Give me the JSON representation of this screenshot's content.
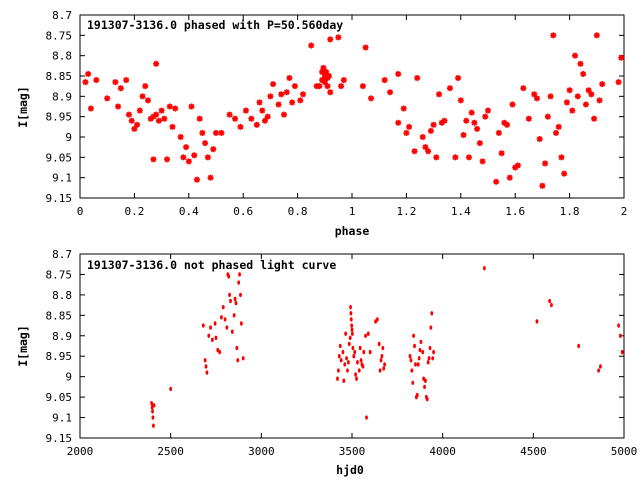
{
  "chart_data": [
    {
      "type": "scatter",
      "title": "191307-3136.0 phased with P=50.560day",
      "xlabel": "phase",
      "ylabel": "I[mag]",
      "xlim": [
        0,
        2
      ],
      "ylim": [
        8.7,
        9.15
      ],
      "y_inverted": true,
      "grid": false,
      "marker_color": "#ff0000",
      "x_ticks": [
        "0",
        "0.2",
        "0.4",
        "0.6",
        "0.8",
        "1",
        "1.2",
        "1.4",
        "1.6",
        "1.8",
        "2"
      ],
      "x_tick_values": [
        0,
        0.2,
        0.4,
        0.6,
        0.8,
        1.0,
        1.2,
        1.4,
        1.6,
        1.8,
        2.0
      ],
      "y_ticks": [
        "8.7",
        "8.75",
        "8.8",
        "8.85",
        "8.9",
        "8.95",
        "9",
        "9.05",
        "9.1",
        "9.15"
      ],
      "y_tick_values": [
        8.7,
        8.75,
        8.8,
        8.85,
        8.9,
        8.95,
        9.0,
        9.05,
        9.1,
        9.15
      ],
      "points": [
        [
          0.02,
          8.865
        ],
        [
          0.03,
          8.845
        ],
        [
          0.04,
          8.93
        ],
        [
          0.06,
          8.86
        ],
        [
          0.1,
          8.905
        ],
        [
          0.13,
          8.865
        ],
        [
          0.14,
          8.925
        ],
        [
          0.15,
          8.88
        ],
        [
          0.17,
          8.86
        ],
        [
          0.18,
          8.945
        ],
        [
          0.19,
          8.96
        ],
        [
          0.2,
          8.98
        ],
        [
          0.21,
          8.97
        ],
        [
          0.22,
          8.935
        ],
        [
          0.23,
          8.9
        ],
        [
          0.24,
          8.875
        ],
        [
          0.25,
          8.91
        ],
        [
          0.26,
          8.955
        ],
        [
          0.27,
          8.95
        ],
        [
          0.27,
          9.055
        ],
        [
          0.28,
          8.82
        ],
        [
          0.28,
          8.945
        ],
        [
          0.29,
          8.96
        ],
        [
          0.3,
          8.935
        ],
        [
          0.31,
          8.955
        ],
        [
          0.32,
          9.055
        ],
        [
          0.33,
          8.925
        ],
        [
          0.34,
          8.975
        ],
        [
          0.35,
          8.93
        ],
        [
          0.37,
          9.0
        ],
        [
          0.38,
          9.05
        ],
        [
          0.39,
          9.025
        ],
        [
          0.4,
          9.06
        ],
        [
          0.41,
          8.925
        ],
        [
          0.42,
          9.045
        ],
        [
          0.43,
          9.105
        ],
        [
          0.44,
          8.955
        ],
        [
          0.45,
          8.99
        ],
        [
          0.46,
          9.015
        ],
        [
          0.47,
          9.05
        ],
        [
          0.48,
          9.1
        ],
        [
          0.49,
          9.03
        ],
        [
          0.5,
          8.99
        ],
        [
          0.52,
          8.99
        ],
        [
          0.55,
          8.945
        ],
        [
          0.57,
          8.955
        ],
        [
          0.59,
          8.975
        ],
        [
          0.61,
          8.935
        ],
        [
          0.63,
          8.955
        ],
        [
          0.65,
          8.97
        ],
        [
          0.66,
          8.915
        ],
        [
          0.67,
          8.935
        ],
        [
          0.68,
          8.96
        ],
        [
          0.69,
          8.95
        ],
        [
          0.7,
          8.9
        ],
        [
          0.71,
          8.87
        ],
        [
          0.73,
          8.92
        ],
        [
          0.74,
          8.895
        ],
        [
          0.75,
          8.945
        ],
        [
          0.76,
          8.89
        ],
        [
          0.77,
          8.855
        ],
        [
          0.78,
          8.915
        ],
        [
          0.79,
          8.875
        ],
        [
          0.81,
          8.91
        ],
        [
          0.82,
          8.895
        ],
        [
          0.85,
          8.775
        ],
        [
          0.87,
          8.875
        ],
        [
          0.88,
          8.875
        ],
        [
          0.89,
          8.84
        ],
        [
          0.89,
          8.86
        ],
        [
          0.895,
          8.83
        ],
        [
          0.9,
          8.85
        ],
        [
          0.9,
          8.865
        ],
        [
          0.905,
          8.84
        ],
        [
          0.91,
          8.855
        ],
        [
          0.91,
          8.875
        ],
        [
          0.915,
          8.85
        ],
        [
          0.92,
          8.76
        ],
        [
          0.92,
          8.89
        ],
        [
          0.95,
          8.755
        ],
        [
          0.96,
          8.875
        ],
        [
          0.97,
          8.86
        ],
        [
          1.04,
          8.875
        ],
        [
          1.05,
          8.78
        ],
        [
          1.07,
          8.905
        ],
        [
          1.12,
          8.86
        ],
        [
          1.14,
          8.89
        ],
        [
          1.17,
          8.845
        ],
        [
          1.17,
          8.965
        ],
        [
          1.19,
          8.93
        ],
        [
          1.2,
          8.99
        ],
        [
          1.21,
          8.975
        ],
        [
          1.23,
          9.035
        ],
        [
          1.24,
          8.855
        ],
        [
          1.26,
          9.0
        ],
        [
          1.27,
          9.025
        ],
        [
          1.28,
          9.035
        ],
        [
          1.29,
          8.985
        ],
        [
          1.3,
          8.97
        ],
        [
          1.31,
          9.05
        ],
        [
          1.32,
          8.895
        ],
        [
          1.33,
          8.965
        ],
        [
          1.34,
          8.96
        ],
        [
          1.36,
          8.88
        ],
        [
          1.38,
          9.05
        ],
        [
          1.39,
          8.855
        ],
        [
          1.4,
          8.91
        ],
        [
          1.41,
          8.995
        ],
        [
          1.42,
          8.96
        ],
        [
          1.43,
          9.05
        ],
        [
          1.44,
          8.94
        ],
        [
          1.45,
          8.965
        ],
        [
          1.46,
          8.98
        ],
        [
          1.47,
          9.015
        ],
        [
          1.48,
          9.06
        ],
        [
          1.49,
          8.95
        ],
        [
          1.5,
          8.935
        ],
        [
          1.53,
          9.11
        ],
        [
          1.54,
          8.99
        ],
        [
          1.55,
          9.04
        ],
        [
          1.56,
          8.965
        ],
        [
          1.57,
          8.97
        ],
        [
          1.58,
          9.1
        ],
        [
          1.59,
          8.92
        ],
        [
          1.6,
          9.075
        ],
        [
          1.61,
          9.07
        ],
        [
          1.63,
          8.88
        ],
        [
          1.65,
          8.955
        ],
        [
          1.67,
          8.895
        ],
        [
          1.68,
          8.905
        ],
        [
          1.69,
          9.005
        ],
        [
          1.7,
          9.12
        ],
        [
          1.71,
          9.065
        ],
        [
          1.72,
          8.95
        ],
        [
          1.73,
          8.9
        ],
        [
          1.74,
          8.75
        ],
        [
          1.75,
          8.99
        ],
        [
          1.76,
          8.975
        ],
        [
          1.77,
          9.05
        ],
        [
          1.78,
          9.09
        ],
        [
          1.79,
          8.915
        ],
        [
          1.8,
          8.885
        ],
        [
          1.81,
          8.935
        ],
        [
          1.82,
          8.8
        ],
        [
          1.83,
          8.9
        ],
        [
          1.84,
          8.82
        ],
        [
          1.85,
          8.845
        ],
        [
          1.86,
          8.92
        ],
        [
          1.87,
          8.885
        ],
        [
          1.88,
          8.895
        ],
        [
          1.89,
          8.955
        ],
        [
          1.9,
          8.75
        ],
        [
          1.91,
          8.91
        ],
        [
          1.92,
          8.87
        ],
        [
          1.98,
          8.865
        ],
        [
          1.99,
          8.805
        ]
      ]
    },
    {
      "type": "scatter",
      "title": "191307-3136.0 not phased light curve",
      "xlabel": "hjd0",
      "ylabel": "I[mag]",
      "xlim": [
        2000,
        5000
      ],
      "ylim": [
        8.7,
        9.15
      ],
      "y_inverted": true,
      "grid": false,
      "marker_color": "#ff0000",
      "x_ticks": [
        "2000",
        "2500",
        "3000",
        "3500",
        "4000",
        "4500",
        "5000"
      ],
      "x_tick_values": [
        2000,
        2500,
        3000,
        3500,
        4000,
        4500,
        5000
      ],
      "y_ticks": [
        "8.7",
        "8.75",
        "8.8",
        "8.85",
        "8.9",
        "8.95",
        "9",
        "9.05",
        "9.1",
        "9.15"
      ],
      "y_tick_values": [
        8.7,
        8.75,
        8.8,
        8.85,
        8.9,
        8.95,
        9.0,
        9.05,
        9.1,
        9.15
      ],
      "points": [
        [
          2395,
          9.065
        ],
        [
          2398,
          9.075
        ],
        [
          2400,
          9.085
        ],
        [
          2402,
          9.1
        ],
        [
          2405,
          9.12
        ],
        [
          2408,
          9.07
        ],
        [
          2500,
          9.03
        ],
        [
          2680,
          8.875
        ],
        [
          2690,
          8.96
        ],
        [
          2695,
          8.975
        ],
        [
          2700,
          8.99
        ],
        [
          2710,
          8.9
        ],
        [
          2720,
          8.88
        ],
        [
          2730,
          8.91
        ],
        [
          2745,
          8.87
        ],
        [
          2750,
          8.905
        ],
        [
          2760,
          8.935
        ],
        [
          2770,
          8.94
        ],
        [
          2780,
          8.855
        ],
        [
          2790,
          8.83
        ],
        [
          2800,
          8.86
        ],
        [
          2810,
          8.88
        ],
        [
          2815,
          8.75
        ],
        [
          2820,
          8.755
        ],
        [
          2825,
          8.8
        ],
        [
          2830,
          8.815
        ],
        [
          2840,
          8.89
        ],
        [
          2850,
          8.85
        ],
        [
          2855,
          8.81
        ],
        [
          2860,
          8.82
        ],
        [
          2865,
          8.93
        ],
        [
          2870,
          8.96
        ],
        [
          2875,
          8.77
        ],
        [
          2880,
          8.75
        ],
        [
          2885,
          8.8
        ],
        [
          2890,
          8.87
        ],
        [
          2900,
          8.955
        ],
        [
          3420,
          9.005
        ],
        [
          3425,
          8.985
        ],
        [
          3430,
          8.95
        ],
        [
          3435,
          8.925
        ],
        [
          3440,
          8.96
        ],
        [
          3450,
          8.94
        ],
        [
          3455,
          9.01
        ],
        [
          3460,
          8.97
        ],
        [
          3465,
          8.895
        ],
        [
          3470,
          8.955
        ],
        [
          3475,
          8.985
        ],
        [
          3480,
          8.965
        ],
        [
          3485,
          8.92
        ],
        [
          3490,
          8.905
        ],
        [
          3492,
          8.83
        ],
        [
          3494,
          8.845
        ],
        [
          3496,
          8.86
        ],
        [
          3498,
          8.875
        ],
        [
          3500,
          8.885
        ],
        [
          3502,
          8.895
        ],
        [
          3505,
          8.93
        ],
        [
          3510,
          8.95
        ],
        [
          3515,
          8.94
        ],
        [
          3520,
          8.995
        ],
        [
          3525,
          9.005
        ],
        [
          3530,
          8.965
        ],
        [
          3540,
          8.985
        ],
        [
          3545,
          8.93
        ],
        [
          3550,
          8.96
        ],
        [
          3555,
          8.97
        ],
        [
          3560,
          8.975
        ],
        [
          3565,
          8.94
        ],
        [
          3575,
          8.9
        ],
        [
          3580,
          9.1
        ],
        [
          3590,
          8.895
        ],
        [
          3600,
          8.94
        ],
        [
          3630,
          8.865
        ],
        [
          3640,
          8.86
        ],
        [
          3650,
          8.92
        ],
        [
          3655,
          8.985
        ],
        [
          3660,
          8.96
        ],
        [
          3665,
          8.95
        ],
        [
          3670,
          8.93
        ],
        [
          3675,
          8.98
        ],
        [
          3680,
          8.97
        ],
        [
          3820,
          8.95
        ],
        [
          3825,
          8.96
        ],
        [
          3830,
          8.985
        ],
        [
          3835,
          9.015
        ],
        [
          3840,
          8.9
        ],
        [
          3845,
          8.925
        ],
        [
          3850,
          8.97
        ],
        [
          3855,
          9.05
        ],
        [
          3860,
          9.045
        ],
        [
          3865,
          8.97
        ],
        [
          3870,
          8.955
        ],
        [
          3875,
          8.935
        ],
        [
          3880,
          8.915
        ],
        [
          3890,
          8.94
        ],
        [
          3895,
          9.005
        ],
        [
          3900,
          9.025
        ],
        [
          3905,
          9.01
        ],
        [
          3910,
          9.05
        ],
        [
          3915,
          9.055
        ],
        [
          3920,
          8.965
        ],
        [
          3925,
          8.955
        ],
        [
          3930,
          8.93
        ],
        [
          3935,
          8.88
        ],
        [
          3940,
          8.845
        ],
        [
          3945,
          8.955
        ],
        [
          3950,
          8.94
        ],
        [
          4230,
          8.735
        ],
        [
          4520,
          8.865
        ],
        [
          4590,
          8.815
        ],
        [
          4600,
          8.825
        ],
        [
          4750,
          8.925
        ],
        [
          4860,
          8.985
        ],
        [
          4870,
          8.975
        ],
        [
          4970,
          8.875
        ],
        [
          4980,
          8.9
        ],
        [
          4990,
          8.94
        ]
      ]
    }
  ]
}
